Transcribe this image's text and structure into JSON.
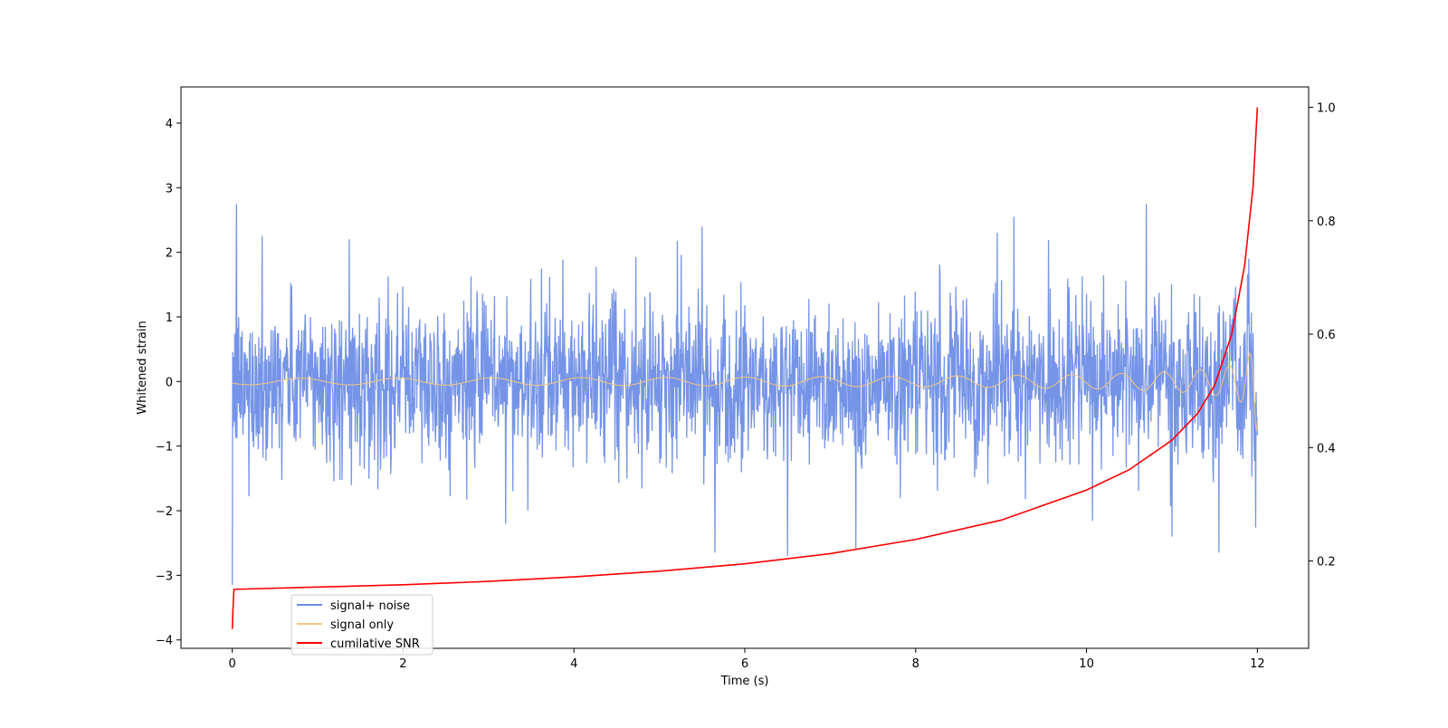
{
  "chart_data": {
    "type": "line",
    "title": "",
    "xlabel": "Time (s)",
    "ylabel": "Whitened strain",
    "y2label": "",
    "xlim": [
      -0.6,
      12.6
    ],
    "ylim": [
      -4.13,
      4.56
    ],
    "y2lim": [
      0.046,
      1.036
    ],
    "x_ticks": [
      0,
      2,
      4,
      6,
      8,
      10,
      12
    ],
    "x_tick_labels": [
      "0",
      "2",
      "4",
      "6",
      "8",
      "10",
      "12"
    ],
    "y_ticks": [
      -4,
      -3,
      -2,
      -1,
      0,
      1,
      2,
      3,
      4
    ],
    "y_tick_labels": [
      "−4",
      "−3",
      "−2",
      "−1",
      "0",
      "1",
      "2",
      "3",
      "4"
    ],
    "y2_ticks": [
      0.2,
      0.4,
      0.6,
      0.8,
      1.0
    ],
    "y2_tick_labels": [
      "0.2",
      "0.4",
      "0.6",
      "0.8",
      "1.0"
    ],
    "grid": false,
    "legend_position": "lower-left",
    "series": [
      {
        "name": "signal+ noise",
        "color": "#6b8ce6",
        "axis": "left",
        "t_start": 0.0,
        "t_end": 12.0,
        "noise_std": 0.6,
        "spikes": [
          {
            "x": 0.0,
            "y": -3.15
          },
          {
            "x": 0.05,
            "y": 2.75
          },
          {
            "x": 0.35,
            "y": 2.25
          },
          {
            "x": 1.37,
            "y": 2.2
          },
          {
            "x": 3.2,
            "y": -2.2
          },
          {
            "x": 5.5,
            "y": 2.4
          },
          {
            "x": 5.65,
            "y": -2.65
          },
          {
            "x": 6.5,
            "y": -2.7
          },
          {
            "x": 7.3,
            "y": -2.6
          },
          {
            "x": 9.15,
            "y": 2.55
          },
          {
            "x": 10.7,
            "y": 2.75
          },
          {
            "x": 11.55,
            "y": -2.65
          },
          {
            "x": 11.0,
            "y": -2.4
          },
          {
            "x": 11.9,
            "y": 1.9
          }
        ]
      },
      {
        "name": "signal only",
        "color": "#f5c77e",
        "axis": "left",
        "t_start": 0.0,
        "t_end": 12.0,
        "t_coalescence": 12.02,
        "amplitude_start": 0.05,
        "amplitude_end": 0.95
      },
      {
        "name": "cumilative SNR",
        "color": "#ff0000",
        "axis": "right",
        "points": [
          [
            0.0,
            0.08
          ],
          [
            0.01,
            0.12
          ],
          [
            0.02,
            0.15
          ],
          [
            1,
            0.154
          ],
          [
            2,
            0.158
          ],
          [
            3,
            0.164
          ],
          [
            4,
            0.172
          ],
          [
            5,
            0.182
          ],
          [
            6,
            0.195
          ],
          [
            7,
            0.213
          ],
          [
            8,
            0.238
          ],
          [
            9,
            0.272
          ],
          [
            10,
            0.325
          ],
          [
            10.5,
            0.361
          ],
          [
            11,
            0.413
          ],
          [
            11.3,
            0.46
          ],
          [
            11.5,
            0.51
          ],
          [
            11.7,
            0.6
          ],
          [
            11.85,
            0.72
          ],
          [
            11.95,
            0.86
          ],
          [
            12.0,
            1.0
          ]
        ]
      }
    ]
  }
}
